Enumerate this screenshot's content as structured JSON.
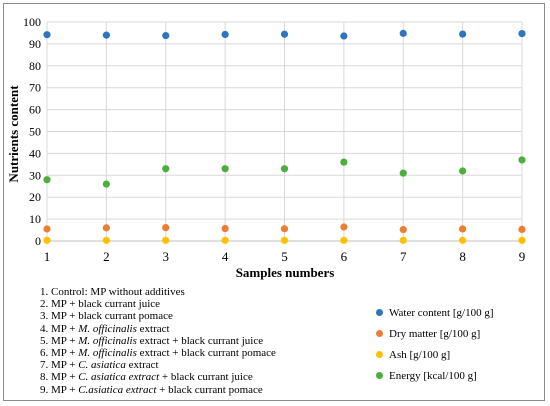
{
  "chart_data": {
    "type": "scatter",
    "title": "",
    "xlabel": "Samples numbers",
    "ylabel": "Nutrients content",
    "xlim": [
      1,
      9
    ],
    "ylim": [
      0,
      100
    ],
    "x_ticks": [
      1,
      2,
      3,
      4,
      5,
      6,
      7,
      8,
      9
    ],
    "y_ticks": [
      0,
      10,
      20,
      30,
      40,
      50,
      60,
      70,
      80,
      90,
      100
    ],
    "grid": true,
    "legend_position": "bottom-right",
    "series": [
      {
        "name": "Water content [g/100 g]",
        "color": "#2e75c0",
        "x": [
          1,
          2,
          3,
          4,
          5,
          6,
          7,
          8,
          9
        ],
        "y": [
          94.2,
          94.0,
          93.8,
          94.3,
          94.4,
          93.6,
          94.8,
          94.5,
          94.7
        ]
      },
      {
        "name": "Dry matter [g/100 g]",
        "color": "#ed7d31",
        "x": [
          1,
          2,
          3,
          4,
          5,
          6,
          7,
          8,
          9
        ],
        "y": [
          5.5,
          6.0,
          6.1,
          5.7,
          5.6,
          6.4,
          5.2,
          5.5,
          5.3
        ]
      },
      {
        "name": "Ash [g/100 g]",
        "color": "#ffc000",
        "x": [
          1,
          2,
          3,
          4,
          5,
          6,
          7,
          8,
          9
        ],
        "y": [
          0.3,
          0.3,
          0.3,
          0.3,
          0.3,
          0.3,
          0.3,
          0.3,
          0.3
        ]
      },
      {
        "name": "Energy [kcal/100 g]",
        "color": "#4caf3c",
        "x": [
          1,
          2,
          3,
          4,
          5,
          6,
          7,
          8,
          9
        ],
        "y": [
          28,
          26,
          33,
          33,
          33,
          36,
          31,
          32,
          37
        ]
      }
    ],
    "notes": [
      [
        {
          "t": "1. Control: MP without additives"
        }
      ],
      [
        {
          "t": "2. MP + black currant juice"
        }
      ],
      [
        {
          "t": "3. MP + black currant pomace"
        }
      ],
      [
        {
          "t": "4. MP + "
        },
        {
          "t": "M. officinalis",
          "i": true
        },
        {
          "t": " extract"
        }
      ],
      [
        {
          "t": "5. MP + "
        },
        {
          "t": "M. officinalis",
          "i": true
        },
        {
          "t": " extract + black currant juice"
        }
      ],
      [
        {
          "t": "6. MP + "
        },
        {
          "t": "M. officinalis",
          "i": true
        },
        {
          "t": " extract + black currant pomace"
        }
      ],
      [
        {
          "t": "7. MP + "
        },
        {
          "t": "C. asiatica",
          "i": true
        },
        {
          "t": " extract"
        }
      ],
      [
        {
          "t": "8. MP + "
        },
        {
          "t": "C. asiatica extract",
          "i": true
        },
        {
          "t": " + black currant juice"
        }
      ],
      [
        {
          "t": "9. MP + "
        },
        {
          "t": "C.asiatica extract",
          "i": true
        },
        {
          "t": " + black currant pomace"
        }
      ]
    ]
  }
}
